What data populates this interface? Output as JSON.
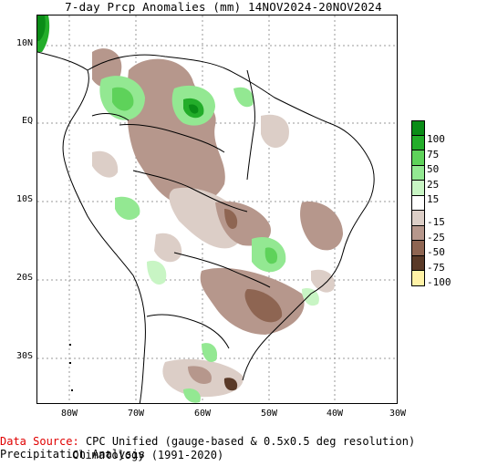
{
  "title": "7-day Prcp Anomalies (mm) 14NOV2024-20NOV2024",
  "y_axis": {
    "ticks": [
      "10N",
      "EQ",
      "10S",
      "20S",
      "30S"
    ]
  },
  "x_axis": {
    "ticks": [
      "80W",
      "70W",
      "60W",
      "50W",
      "40W",
      "30W"
    ]
  },
  "legend": {
    "labels": [
      "100",
      "75",
      "50",
      "25",
      "15",
      "-15",
      "-25",
      "-50",
      "-75",
      "-100"
    ],
    "colors": [
      "#0a8c17",
      "#23ad2a",
      "#5ed25a",
      "#93e892",
      "#c8f5c4",
      "#ffffff",
      "#dccec7",
      "#b6978c",
      "#8e6552",
      "#5a3a28",
      "#fff2a6"
    ]
  },
  "footer": {
    "source_label": "Data Source:",
    "source_text": "CPC Unified (gauge-based & 0.5x0.5 deg resolution) Precipitation Analysis",
    "climatology": "Climatology (1991-2020)"
  }
}
